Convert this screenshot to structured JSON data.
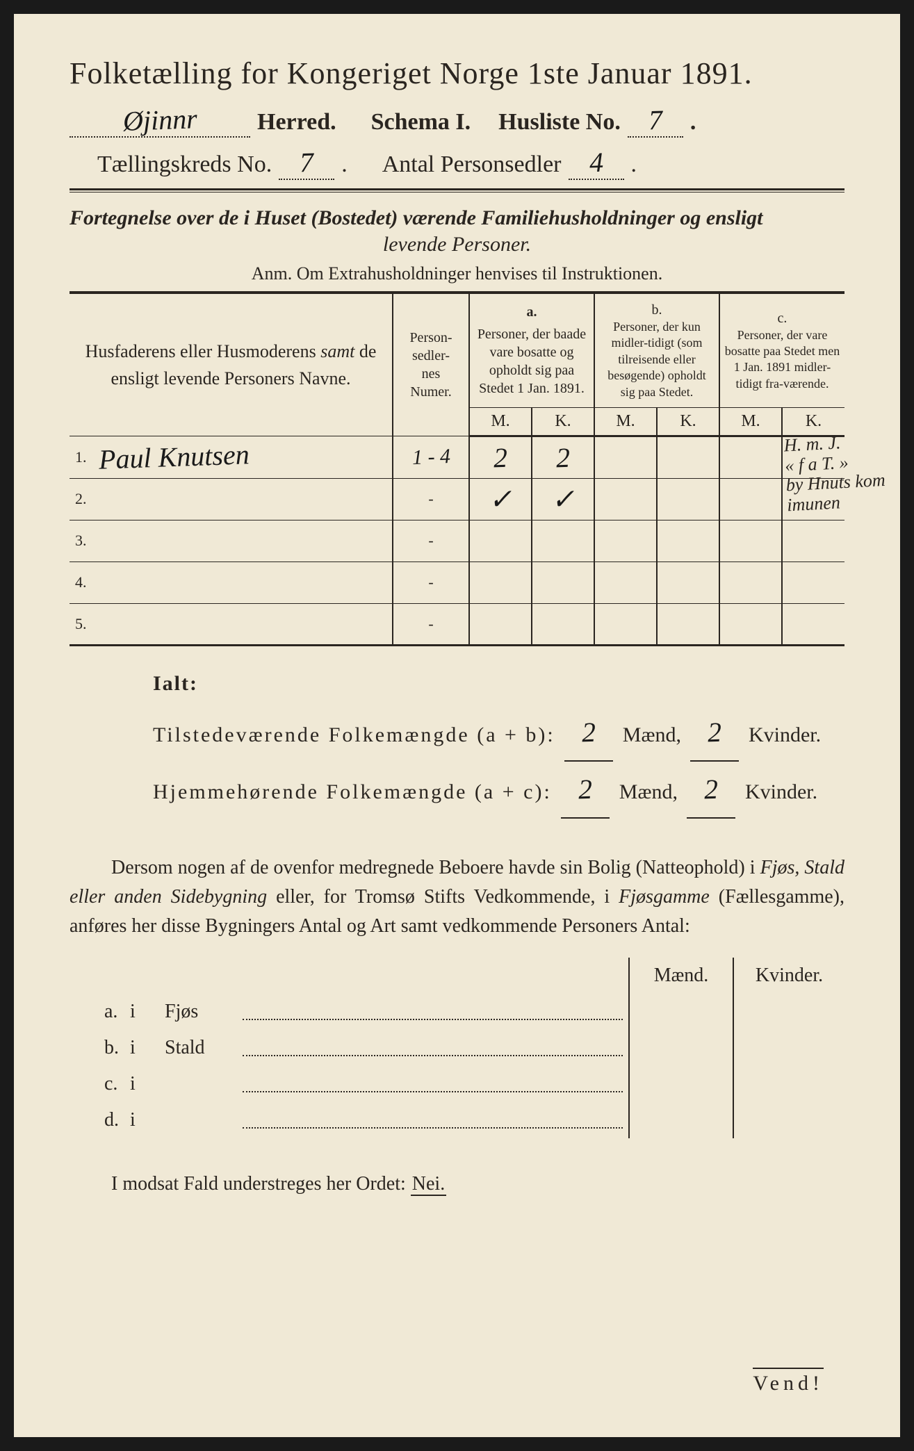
{
  "title": "Folketælling for Kongeriget Norge 1ste Januar 1891.",
  "header": {
    "herred_value": "Øjinnr",
    "herred_label": "Herred.",
    "schema_label": "Schema I.",
    "husliste_label": "Husliste No.",
    "husliste_value": "7",
    "kreds_label": "Tællingskreds No.",
    "kreds_value": "7",
    "antal_label": "Antal Personsedler",
    "antal_value": "4"
  },
  "subtitle_line1": "Fortegnelse over de i Huset (Bostedet) værende Familiehusholdninger og ensligt",
  "subtitle_line2": "levende Personer.",
  "anm": "Anm.  Om Extrahusholdninger henvises til Instruktionen.",
  "columns": {
    "names": "Husfaderens eller Husmoderens samt de ensligt levende Personers Navne.",
    "numer": "Person-\nsedler-\nnes\nNumer.",
    "a_label": "a.",
    "a_text": "Personer, der baade vare bosatte og opholdt sig paa Stedet 1 Jan. 1891.",
    "b_label": "b.",
    "b_text": "Personer, der kun midler-tidigt (som tilreisende eller besøgende) opholdt sig paa Stedet.",
    "c_label": "c.",
    "c_text": "Personer, der vare bosatte paa Stedet men 1 Jan. 1891 midler-tidigt fra-værende.",
    "M": "M.",
    "K": "K."
  },
  "rows": [
    {
      "num": "1.",
      "name": "Paul Knutsen",
      "numer": "1 - 4",
      "aM": "2",
      "aK": "2",
      "bM": "",
      "bK": "",
      "cM": "",
      "cK": "",
      "note": "H. m. J.\n« f a T. »\nby Hnuts kom\nimunen"
    },
    {
      "num": "2.",
      "name": "",
      "numer": "",
      "aM": "✓",
      "aK": "✓",
      "bM": "",
      "bK": "",
      "cM": "",
      "cK": "",
      "note": ""
    },
    {
      "num": "3.",
      "name": "",
      "numer": "",
      "aM": "",
      "aK": "",
      "bM": "",
      "bK": "",
      "cM": "",
      "cK": "",
      "note": ""
    },
    {
      "num": "4.",
      "name": "",
      "numer": "",
      "aM": "",
      "aK": "",
      "bM": "",
      "bK": "",
      "cM": "",
      "cK": "",
      "note": ""
    },
    {
      "num": "5.",
      "name": "",
      "numer": "",
      "aM": "",
      "aK": "",
      "bM": "",
      "bK": "",
      "cM": "",
      "cK": "",
      "note": ""
    }
  ],
  "ialt": {
    "heading": "Ialt:",
    "tilst_label": "Tilstedeværende Folkemængde (a + b):",
    "hjem_label": "Hjemmehørende Folkemængde (a + c):",
    "maend": "Mænd,",
    "kvinder": "Kvinder.",
    "tilst_m": "2",
    "tilst_k": "2",
    "hjem_m": "2",
    "hjem_k": "2"
  },
  "para": "Dersom nogen af de ovenfor medregnede Beboere havde sin Bolig (Natteophold) i Fjøs, Stald eller anden Sidebygning eller, for Tromsø Stifts Vedkommende, i Fjøsgamme (Fællesgamme), anføres her disse Bygningers Antal og Art samt vedkommende Personers Antal:",
  "sidebyg": {
    "maend": "Mænd.",
    "kvinder": "Kvinder.",
    "rows": [
      {
        "key": "a.",
        "i": "i",
        "label": "Fjøs"
      },
      {
        "key": "b.",
        "i": "i",
        "label": "Stald"
      },
      {
        "key": "c.",
        "i": "i",
        "label": ""
      },
      {
        "key": "d.",
        "i": "i",
        "label": ""
      }
    ]
  },
  "modsat": "I modsat Fald understreges her Ordet:",
  "nei": "Nei.",
  "vend": "Vend!"
}
